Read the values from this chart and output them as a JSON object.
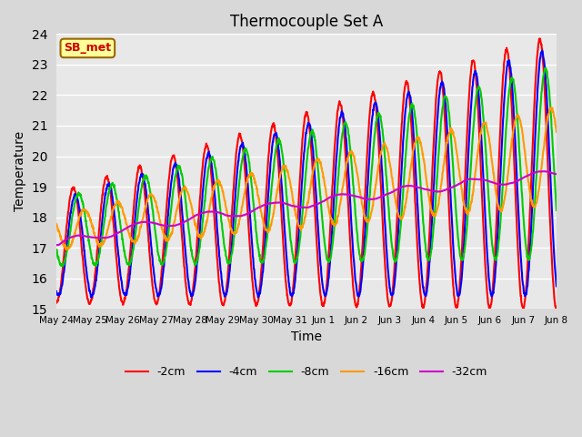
{
  "title": "Thermocouple Set A",
  "xlabel": "Time",
  "ylabel": "Temperature",
  "ylim": [
    15.0,
    24.0
  ],
  "yticks": [
    15.0,
    16.0,
    17.0,
    18.0,
    19.0,
    20.0,
    21.0,
    22.0,
    23.0,
    24.0
  ],
  "xtick_labels": [
    "May 24",
    "May 25",
    "May 26",
    "May 27",
    "May 28",
    "May 29",
    "May 30",
    "May 31",
    "Jun 1",
    "Jun 2",
    "Jun 3",
    "Jun 4",
    "Jun 5",
    "Jun 6",
    "Jun 7",
    "Jun 8"
  ],
  "series_labels": [
    "-2cm",
    "-4cm",
    "-8cm",
    "-16cm",
    "-32cm"
  ],
  "series_colors": [
    "#ff0000",
    "#0000ff",
    "#00cc00",
    "#ff9900",
    "#cc00cc"
  ],
  "annotation_text": "SB_met",
  "annotation_bg": "#ffff99",
  "annotation_border": "#996600",
  "annotation_text_color": "#cc0000",
  "fig_bg": "#d8d8d8",
  "plot_bg": "#e8e8e8",
  "grid_color": "#ffffff",
  "lw": 1.5
}
